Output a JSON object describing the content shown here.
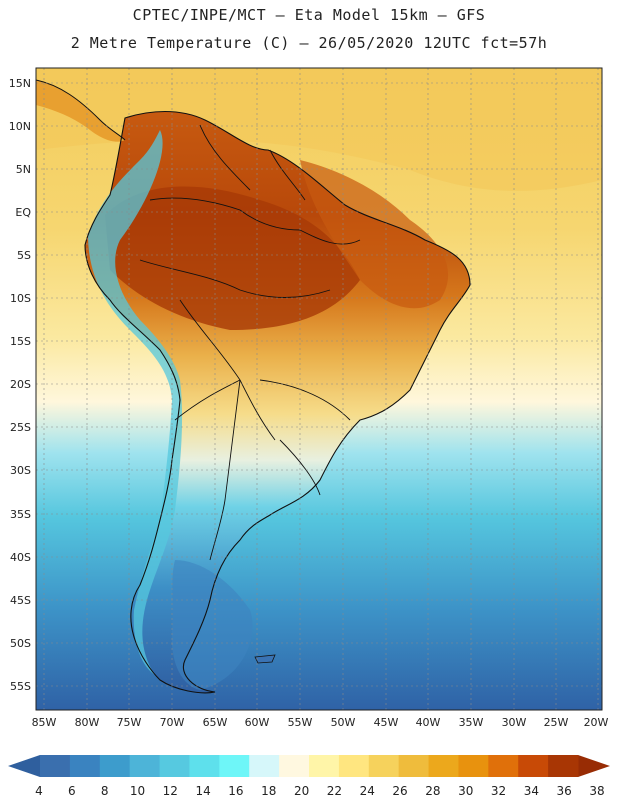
{
  "header": {
    "line1": "CPTEC/INPE/MCT –  Eta Model 15km – GFS",
    "line2": "2 Metre Temperature (C) – 26/05/2020 12UTC fct=57h"
  },
  "axes": {
    "lat_labels": [
      "15N",
      "10N",
      "5N",
      "EQ",
      "5S",
      "10S",
      "15S",
      "20S",
      "25S",
      "30S",
      "35S",
      "40S",
      "45S",
      "50S",
      "55S"
    ],
    "lon_labels": [
      "85W",
      "80W",
      "75W",
      "70W",
      "65W",
      "60W",
      "55W",
      "50W",
      "45W",
      "40W",
      "35W",
      "30W",
      "25W",
      "20W"
    ]
  },
  "colorbar": {
    "values": [
      "4",
      "6",
      "8",
      "10",
      "12",
      "14",
      "16",
      "18",
      "20",
      "22",
      "24",
      "26",
      "28",
      "30",
      "32",
      "34",
      "36",
      "38"
    ],
    "colors": [
      "#3a6fae",
      "#3a83c0",
      "#3d9ccc",
      "#4db4d8",
      "#56c9e0",
      "#5ee0ec",
      "#6ef6f8",
      "#d6f7fa",
      "#fff8e0",
      "#fff5a8",
      "#ffe680",
      "#f6d25c",
      "#efbc3c",
      "#eca81c",
      "#e8920e",
      "#e0700a",
      "#c84a06",
      "#a83604"
    ],
    "low_end_color": "#2f5f9e",
    "high_end_color": "#982c04"
  }
}
